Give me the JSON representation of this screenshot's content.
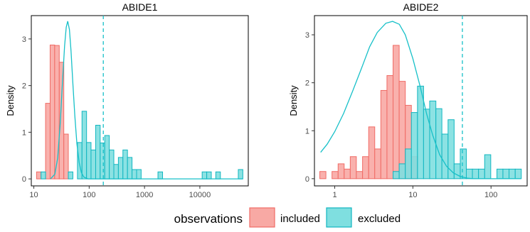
{
  "legend": {
    "title": "observations",
    "items": [
      {
        "label": "included",
        "fill": "#f8a9a4",
        "stroke": "#f06c66"
      },
      {
        "label": "excluded",
        "fill": "#7fdfe0",
        "stroke": "#12b6c0"
      }
    ]
  },
  "colors": {
    "included_fill": "#f8a9a4",
    "included_stroke": "#f06c66",
    "excluded_fill": "#7fdfe0",
    "excluded_stroke": "#12b6c0",
    "curve": "#17c0c8",
    "axis": "#000000"
  },
  "chart_data": [
    {
      "type": "histogram",
      "title": "ABIDE1",
      "ylabel": "Density",
      "xscale": "log10",
      "xlim": [
        9,
        75000
      ],
      "ylim": [
        -0.15,
        3.5
      ],
      "xticks": [
        10,
        100,
        1000,
        10000
      ],
      "xtick_labels": [
        "10",
        "100",
        "1000",
        "10000"
      ],
      "yticks": [
        0,
        1,
        2,
        3
      ],
      "ytick_labels": [
        "0",
        "1",
        "2",
        "3"
      ],
      "vline": 180,
      "series": [
        {
          "name": "included",
          "bars": [
            {
              "x0": 11.2,
              "x1": 13.5,
              "y": 0.15
            },
            {
              "x0": 16.3,
              "x1": 19.7,
              "y": 1.62
            },
            {
              "x0": 19.7,
              "x1": 23.8,
              "y": 2.87
            },
            {
              "x0": 23.8,
              "x1": 28.8,
              "y": 2.86
            },
            {
              "x0": 28.8,
              "x1": 34.8,
              "y": 2.5
            },
            {
              "x0": 34.8,
              "x1": 42,
              "y": 0.96
            }
          ]
        },
        {
          "name": "excluded",
          "bars": [
            {
              "x0": 13.5,
              "x1": 16.3,
              "y": 0.15
            },
            {
              "x0": 42,
              "x1": 50.8,
              "y": 0.15
            },
            {
              "x0": 61.4,
              "x1": 74.2,
              "y": 0.78
            },
            {
              "x0": 74.2,
              "x1": 89.7,
              "y": 1.45
            },
            {
              "x0": 89.7,
              "x1": 108,
              "y": 0.78
            },
            {
              "x0": 108,
              "x1": 131,
              "y": 0.62
            },
            {
              "x0": 131,
              "x1": 158,
              "y": 1.15
            },
            {
              "x0": 158,
              "x1": 191,
              "y": 0.77
            },
            {
              "x0": 191,
              "x1": 231,
              "y": 0.93
            },
            {
              "x0": 231,
              "x1": 279,
              "y": 0.62
            },
            {
              "x0": 279,
              "x1": 337,
              "y": 0.31
            },
            {
              "x0": 337,
              "x1": 407,
              "y": 0.46
            },
            {
              "x0": 407,
              "x1": 492,
              "y": 0.62
            },
            {
              "x0": 492,
              "x1": 595,
              "y": 0.46
            },
            {
              "x0": 595,
              "x1": 719,
              "y": 0.2
            },
            {
              "x0": 719,
              "x1": 869,
              "y": 0.2
            },
            {
              "x0": 1750,
              "x1": 2120,
              "y": 0.15
            },
            {
              "x0": 11000,
              "x1": 13300,
              "y": 0.15
            },
            {
              "x0": 13300,
              "x1": 16100,
              "y": 0.15
            },
            {
              "x0": 19400,
              "x1": 23500,
              "y": 0.15
            },
            {
              "x0": 49500,
              "x1": 59800,
              "y": 0.2
            }
          ]
        }
      ],
      "curve": {
        "points": [
          [
            20,
            0.0
          ],
          [
            24,
            0.1
          ],
          [
            27,
            0.45
          ],
          [
            30,
            1.2
          ],
          [
            33,
            2.1
          ],
          [
            36,
            2.85
          ],
          [
            38.5,
            3.25
          ],
          [
            41,
            3.38
          ],
          [
            44,
            3.2
          ],
          [
            47,
            2.75
          ],
          [
            51,
            2.0
          ],
          [
            55,
            1.35
          ],
          [
            60,
            0.75
          ],
          [
            66,
            0.35
          ],
          [
            72,
            0.14
          ],
          [
            80,
            0.04
          ],
          [
            95,
            0.0
          ],
          [
            60000,
            0.0
          ]
        ]
      }
    },
    {
      "type": "histogram",
      "title": "ABIDE2",
      "ylabel": "Density",
      "xscale": "log10",
      "xlim": [
        0.55,
        290
      ],
      "ylim": [
        -0.15,
        3.4
      ],
      "xticks": [
        1,
        10,
        100
      ],
      "xtick_labels": [
        "1",
        "10",
        "100"
      ],
      "yticks": [
        0,
        1,
        2,
        3
      ],
      "ytick_labels": [
        "0",
        "1",
        "2",
        "3"
      ],
      "vline": 43,
      "series": [
        {
          "name": "included",
          "bars": [
            {
              "x0": 0.644,
              "x1": 0.771,
              "y": 0.15
            },
            {
              "x0": 0.923,
              "x1": 1.105,
              "y": 0.15
            },
            {
              "x0": 1.105,
              "x1": 1.32,
              "y": 0.31
            },
            {
              "x0": 1.32,
              "x1": 1.58,
              "y": 0.2
            },
            {
              "x0": 1.58,
              "x1": 1.89,
              "y": 0.46
            },
            {
              "x0": 1.89,
              "x1": 2.27,
              "y": 0.15
            },
            {
              "x0": 2.27,
              "x1": 2.72,
              "y": 0.46
            },
            {
              "x0": 2.72,
              "x1": 3.25,
              "y": 1.08
            },
            {
              "x0": 3.25,
              "x1": 3.89,
              "y": 0.62
            },
            {
              "x0": 3.89,
              "x1": 4.66,
              "y": 1.84
            },
            {
              "x0": 4.66,
              "x1": 5.58,
              "y": 2.15
            },
            {
              "x0": 5.58,
              "x1": 6.68,
              "y": 2.78
            },
            {
              "x0": 6.68,
              "x1": 8.0,
              "y": 2.03
            },
            {
              "x0": 8.0,
              "x1": 9.57,
              "y": 1.53
            },
            {
              "x0": 9.57,
              "x1": 11.46,
              "y": 0.46
            }
          ]
        },
        {
          "name": "excluded",
          "bars": [
            {
              "x0": 5.58,
              "x1": 6.68,
              "y": 0.15
            },
            {
              "x0": 6.68,
              "x1": 8.0,
              "y": 0.31
            },
            {
              "x0": 8.0,
              "x1": 9.57,
              "y": 0.62
            },
            {
              "x0": 9.57,
              "x1": 11.46,
              "y": 1.38
            },
            {
              "x0": 11.46,
              "x1": 13.7,
              "y": 1.93
            },
            {
              "x0": 13.7,
              "x1": 16.4,
              "y": 1.45
            },
            {
              "x0": 16.4,
              "x1": 19.7,
              "y": 1.62
            },
            {
              "x0": 19.7,
              "x1": 23.5,
              "y": 1.46
            },
            {
              "x0": 23.5,
              "x1": 28.2,
              "y": 0.93
            },
            {
              "x0": 28.2,
              "x1": 33.7,
              "y": 1.23
            },
            {
              "x0": 33.7,
              "x1": 40.4,
              "y": 0.31
            },
            {
              "x0": 40.4,
              "x1": 48.3,
              "y": 0.62
            },
            {
              "x0": 48.3,
              "x1": 57.8,
              "y": 0.2
            },
            {
              "x0": 57.8,
              "x1": 69.2,
              "y": 0.2
            },
            {
              "x0": 69.2,
              "x1": 82.9,
              "y": 0.2
            },
            {
              "x0": 82.9,
              "x1": 99.2,
              "y": 0.5
            },
            {
              "x0": 119,
              "x1": 142,
              "y": 0.2
            },
            {
              "x0": 142,
              "x1": 170,
              "y": 0.2
            },
            {
              "x0": 170,
              "x1": 204,
              "y": 0.2
            },
            {
              "x0": 204,
              "x1": 244,
              "y": 0.2
            }
          ]
        }
      ],
      "curve": {
        "points": [
          [
            0.66,
            0.55
          ],
          [
            0.8,
            0.72
          ],
          [
            1.0,
            0.98
          ],
          [
            1.3,
            1.36
          ],
          [
            1.7,
            1.83
          ],
          [
            2.2,
            2.3
          ],
          [
            2.8,
            2.75
          ],
          [
            3.5,
            3.05
          ],
          [
            4.5,
            3.24
          ],
          [
            5.5,
            3.28
          ],
          [
            6.7,
            3.22
          ],
          [
            8.0,
            3.0
          ],
          [
            10,
            2.5
          ],
          [
            12.5,
            1.9
          ],
          [
            15,
            1.35
          ],
          [
            18,
            0.9
          ],
          [
            22,
            0.5
          ],
          [
            27,
            0.26
          ],
          [
            33,
            0.12
          ],
          [
            40,
            0.05
          ],
          [
            50,
            0.01
          ],
          [
            60,
            0.0
          ],
          [
            240,
            0.0
          ]
        ]
      }
    }
  ]
}
